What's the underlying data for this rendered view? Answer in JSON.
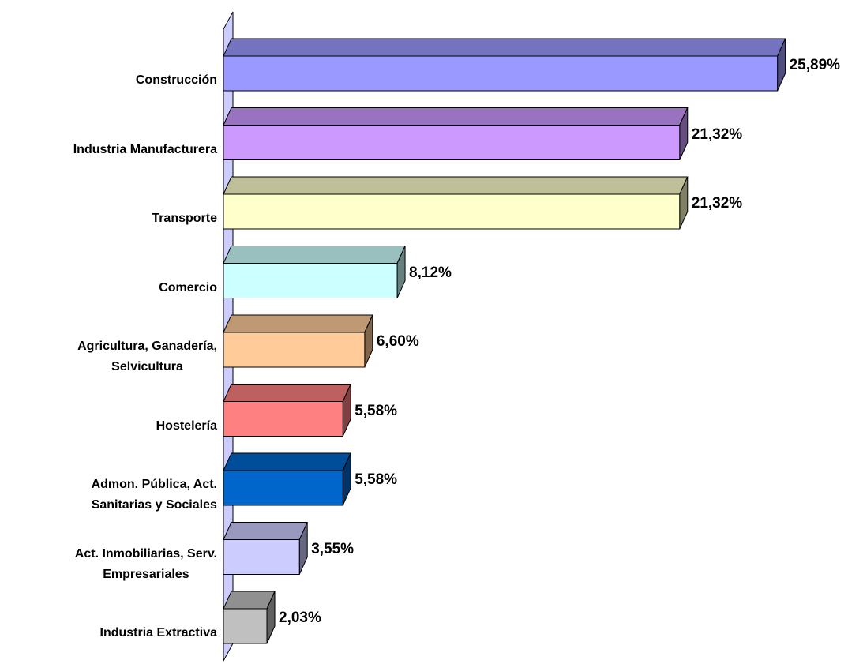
{
  "chart_data": {
    "type": "bar3d_horizontal",
    "categories": [
      "Construcción",
      "Industria Manufacturera",
      "Transporte",
      "Comercio",
      "Agricultura, Ganadería,\nSelvicultura",
      "Hostelería",
      "Admon. Pública, Act.\nSanitarias y Sociales",
      "Act. Inmobiliarias, Serv.\nEmpresariales",
      "Industria Extractiva"
    ],
    "values": [
      25.89,
      21.32,
      21.32,
      8.12,
      6.6,
      5.58,
      5.58,
      3.55,
      2.03
    ],
    "value_labels": [
      "25,89%",
      "21,32%",
      "21,32%",
      "8,12%",
      "6,60%",
      "5,58%",
      "5,58%",
      "3,55%",
      "2,03%"
    ],
    "colors": [
      "#9999ff",
      "#cc99ff",
      "#ffffcc",
      "#ccffff",
      "#ffcc99",
      "#ff8080",
      "#0066cc",
      "#ccccff",
      "#c0c0c0"
    ]
  }
}
